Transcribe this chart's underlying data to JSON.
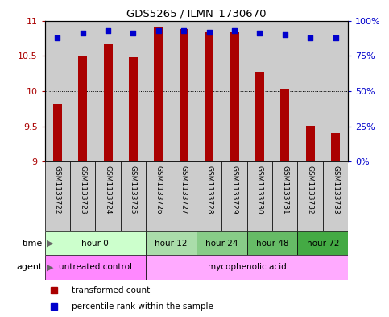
{
  "title": "GDS5265 / ILMN_1730670",
  "samples": [
    "GSM1133722",
    "GSM1133723",
    "GSM1133724",
    "GSM1133725",
    "GSM1133726",
    "GSM1133727",
    "GSM1133728",
    "GSM1133729",
    "GSM1133730",
    "GSM1133731",
    "GSM1133732",
    "GSM1133733"
  ],
  "bar_values": [
    9.82,
    10.49,
    10.67,
    10.48,
    10.92,
    10.88,
    10.83,
    10.83,
    10.28,
    10.03,
    9.51,
    9.4
  ],
  "dot_values": [
    88,
    91,
    93,
    91,
    93,
    93,
    92,
    93,
    91,
    90,
    88,
    88
  ],
  "bar_color": "#aa0000",
  "dot_color": "#0000cc",
  "ylim_left": [
    9,
    11
  ],
  "ylim_right": [
    0,
    100
  ],
  "yticks_left": [
    9,
    9.5,
    10,
    10.5,
    11
  ],
  "yticks_right": [
    0,
    25,
    50,
    75,
    100
  ],
  "ytick_labels_right": [
    "0%",
    "25%",
    "50%",
    "75%",
    "100%"
  ],
  "background_color": "#ffffff",
  "col_bg": "#cccccc",
  "time_groups": [
    {
      "label": "hour 0",
      "start": 0,
      "end": 3,
      "color": "#ccffcc"
    },
    {
      "label": "hour 12",
      "start": 4,
      "end": 5,
      "color": "#aaddaa"
    },
    {
      "label": "hour 24",
      "start": 6,
      "end": 7,
      "color": "#88cc88"
    },
    {
      "label": "hour 48",
      "start": 8,
      "end": 9,
      "color": "#66bb66"
    },
    {
      "label": "hour 72",
      "start": 10,
      "end": 11,
      "color": "#44aa44"
    }
  ],
  "agent_groups": [
    {
      "label": "untreated control",
      "start": 0,
      "end": 3,
      "color": "#ff88ff"
    },
    {
      "label": "mycophenolic acid",
      "start": 4,
      "end": 11,
      "color": "#ffaaff"
    }
  ],
  "legend_items": [
    {
      "label": "transformed count",
      "color": "#aa0000"
    },
    {
      "label": "percentile rank within the sample",
      "color": "#0000cc"
    }
  ],
  "time_label": "time",
  "agent_label": "agent"
}
